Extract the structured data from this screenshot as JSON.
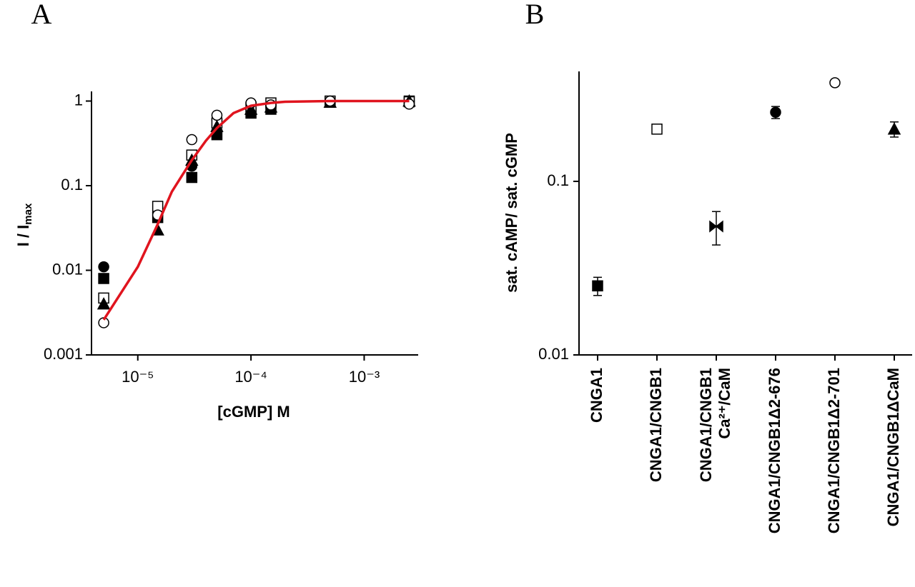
{
  "chart_data": [
    {
      "type": "scatter",
      "panel_label": "A",
      "x_label": "[cGMP] M",
      "y_label": "I / I",
      "y_label_sub": "max",
      "xscale": "log",
      "yscale": "log",
      "xlim": [
        3.9e-06,
        0.003
      ],
      "ylim": [
        0.001,
        1.3
      ],
      "xticks": [
        {
          "value": 1e-05,
          "label": "10⁻⁵"
        },
        {
          "value": 0.0001,
          "label": "10⁻⁴"
        },
        {
          "value": 0.001,
          "label": "10⁻³"
        }
      ],
      "yticks": [
        0.001,
        0.01,
        0.1,
        1
      ],
      "x": [
        5e-06,
        1.5e-05,
        3e-05,
        5e-05,
        0.0001,
        0.00015,
        0.0005,
        0.0025
      ],
      "series": [
        {
          "marker": "circle",
          "filled": true,
          "color": "#000000",
          "values": [
            0.011,
            0.048,
            0.17,
            0.6,
            0.92,
            0.88,
            0.98,
            1.0
          ]
        },
        {
          "marker": "square",
          "filled": true,
          "color": "#000000",
          "values": [
            0.008,
            0.042,
            0.125,
            0.4,
            0.72,
            0.8,
            0.97,
            1.0
          ]
        },
        {
          "marker": "square",
          "filled": false,
          "color": "#000000",
          "values": [
            0.0047,
            0.057,
            0.23,
            0.55,
            0.85,
            0.95,
            1.0,
            0.98
          ]
        },
        {
          "marker": "triangle",
          "filled": true,
          "color": "#000000",
          "values": [
            0.004,
            0.03,
            0.2,
            0.5,
            0.8,
            0.85,
            0.97,
            1.0
          ]
        },
        {
          "marker": "circle",
          "filled": false,
          "color": "#000000",
          "values": [
            0.0024,
            0.045,
            0.35,
            0.68,
            0.95,
            0.9,
            1.0,
            0.92
          ]
        }
      ],
      "fit": {
        "color": "#e0141e",
        "x": [
          5e-06,
          1e-05,
          1.5e-05,
          2e-05,
          3e-05,
          4e-05,
          5e-05,
          7e-05,
          0.0001,
          0.00015,
          0.0002,
          0.0005,
          0.001,
          0.0025
        ],
        "values": [
          0.0026,
          0.011,
          0.035,
          0.085,
          0.2,
          0.34,
          0.48,
          0.72,
          0.88,
          0.95,
          0.98,
          1.0,
          1.0,
          1.0
        ]
      }
    },
    {
      "type": "dot",
      "panel_label": "B",
      "y_label": "sat. cAMP/ sat. cGMP",
      "yscale": "log",
      "ylim": [
        0.01,
        0.43
      ],
      "yticks": [
        0.01,
        0.1
      ],
      "categories": [
        "CNGA1",
        "CNGA1/CNGB1",
        [
          "CNGA1/CNGB1",
          "Ca²⁺/CaM"
        ],
        "CNGA1/CNGB1Δ2-676",
        "CNGA1/CNGB1Δ2-701",
        "CNGA1/CNGB1ΔCaM"
      ],
      "values": [
        0.025,
        0.2,
        0.055,
        0.25,
        0.37,
        0.2
      ],
      "errors": [
        0.003,
        null,
        0.012,
        0.02,
        null,
        0.02
      ],
      "markers": [
        "square-filled",
        "square-open",
        "bowtie",
        "circle-filled",
        "circle-open",
        "triangle-filled"
      ],
      "color": "#000000"
    }
  ]
}
